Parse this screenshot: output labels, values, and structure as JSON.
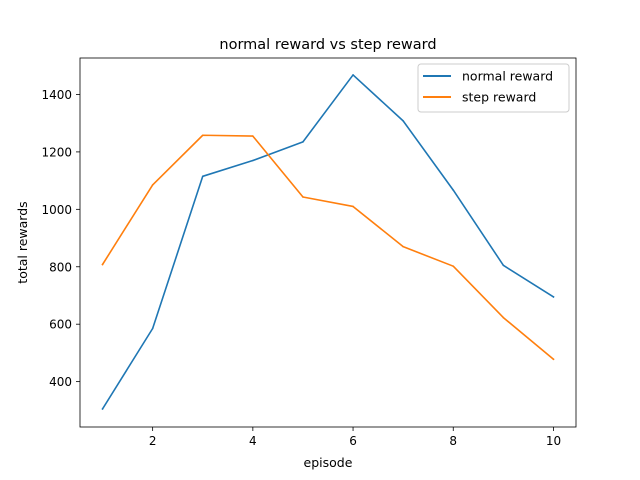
{
  "chart_data": {
    "type": "line",
    "title": "normal reward vs step reward",
    "xlabel": "episode",
    "ylabel": "total rewards",
    "x": [
      1,
      2,
      3,
      4,
      5,
      6,
      7,
      8,
      9,
      10
    ],
    "xlim": [
      0.55,
      10.45
    ],
    "ylim": [
      242,
      1527
    ],
    "xticks": [
      2,
      4,
      6,
      8,
      10
    ],
    "yticks": [
      400,
      600,
      800,
      1000,
      1200,
      1400
    ],
    "grid": false,
    "legend_position": "top-right",
    "series": [
      {
        "name": "normal reward",
        "color": "#1f77b4",
        "values": [
          305,
          585,
          1115,
          1170,
          1235,
          1468,
          1308,
          1067,
          805,
          695
        ]
      },
      {
        "name": "step reward",
        "color": "#ff7f0e",
        "values": [
          808,
          1085,
          1258,
          1255,
          1043,
          1010,
          870,
          802,
          623,
          478
        ]
      }
    ]
  }
}
